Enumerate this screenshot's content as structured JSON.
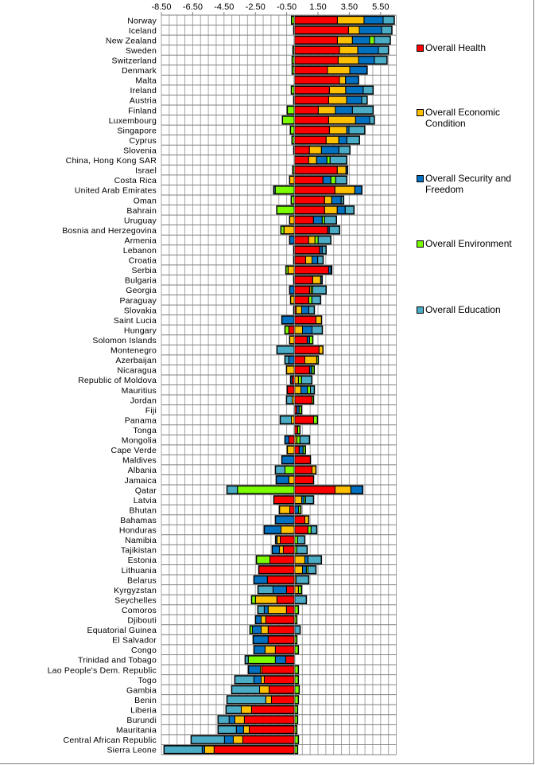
{
  "chart_data": {
    "type": "bar",
    "orientation": "horizontal",
    "stacked": true,
    "title": "",
    "xlabel": "",
    "ylabel": "",
    "xlim": [
      -8.5,
      6.5
    ],
    "x_ticks": [
      "-8.50",
      "-6.50",
      "-4.50",
      "-2.50",
      "-0.50",
      "1.50",
      "3.50",
      "5.50"
    ],
    "x_tick_values": [
      -8.5,
      -6.5,
      -4.5,
      -2.5,
      -0.5,
      1.5,
      3.5,
      5.5
    ],
    "grid": true,
    "legend_position": "right",
    "colors": {
      "Overall Health": "#ff0000",
      "Overall Economic Condition": "#ffc000",
      "Overall Security and Freedom": "#0070c0",
      "Overall Environment": "#7cfc00",
      "Overall Education": "#4bacc6"
    },
    "series_order": [
      "Overall Health",
      "Overall Economic Condition",
      "Overall Security and Freedom",
      "Overall Environment",
      "Overall Education"
    ],
    "categories": [
      "Norway",
      "Iceland",
      "New Zealand",
      "Sweden",
      "Switzerland",
      "Denmark",
      "Malta",
      "Ireland",
      "Austria",
      "Finland",
      "Luxembourg",
      "Singapore",
      "Cyprus",
      "Slovenia",
      "China, Hong Kong SAR",
      "Israel",
      "Costa Rica",
      "United Arab Emirates",
      "Oman",
      "Bahrain",
      "Uruguay",
      "Bosnia and Herzegovina",
      "Armenia",
      "Lebanon",
      "Croatia",
      "Serbia",
      "Bulgaria",
      "Georgia",
      "Paraguay",
      "Slovakia",
      "Saint Lucia",
      "Hungary",
      "Solomon Islands",
      "Montenegro",
      "Azerbaijan",
      "Nicaragua",
      "Republic of Moldova",
      "Mauritius",
      "Jordan",
      "Fiji",
      "Panama",
      "Tonga",
      "Mongolia",
      "Cape Verde",
      "Maldives",
      "Albania",
      "Jamaica",
      "Qatar",
      "Latvia",
      "Bhutan",
      "Bahamas",
      "Honduras",
      "Namibia",
      "Tajikistan",
      "Estonia",
      "Lithuania",
      "Belarus",
      "Kyrgyzstan",
      "Seychelles",
      "Comoros",
      "Djibouti",
      "Equatorial Guinea",
      "El Salvador",
      "Congo",
      "Trinidad and Tobago",
      "Lao People's Dem. Republic",
      "Togo",
      "Gambia",
      "Benin",
      "Liberia",
      "Burundi",
      "Mauritania",
      "Central African Republic",
      "Sierra Leone"
    ],
    "series": [
      {
        "name": "Overall Health",
        "values": [
          2.74,
          3.45,
          2.74,
          2.87,
          2.79,
          2.11,
          2.87,
          2.23,
          2.18,
          1.52,
          2.18,
          2.23,
          2.02,
          0.95,
          0.9,
          2.73,
          1.82,
          2.58,
          1.92,
          1.92,
          1.21,
          2.12,
          0.9,
          1.61,
          0.71,
          2.18,
          1.16,
          0.96,
          0.91,
          0.1,
          1.37,
          -0.36,
          0.81,
          1.57,
          0.66,
          0.96,
          -0.15,
          -0.46,
          1.12,
          0.15,
          1.22,
          0.2,
          -0.36,
          0.3,
          1.02,
          1.12,
          1.22,
          2.59,
          -1.32,
          -0.3,
          0.66,
          0.86,
          -0.91,
          -0.71,
          -1.57,
          -2.28,
          -1.73,
          -0.51,
          -1.12,
          -0.51,
          -1.83,
          -1.68,
          -1.68,
          -1.22,
          -0.56,
          -2.08,
          -1.93,
          -1.62,
          -1.47,
          -2.74,
          -3.2,
          -2.89,
          -3.3,
          -5.13
        ]
      },
      {
        "name": "Overall Economic Condition",
        "values": [
          1.7,
          0.69,
          0.96,
          1.17,
          1.3,
          1.42,
          0.39,
          1.04,
          1.15,
          1.09,
          1.72,
          1.1,
          0.81,
          0.77,
          0.51,
          0.56,
          -0.31,
          1.27,
          0.46,
          0.81,
          -0.31,
          -0.67,
          0.41,
          0.0,
          0.41,
          -0.41,
          0.51,
          0.1,
          -0.25,
          0.36,
          0.36,
          0.51,
          -0.31,
          0.25,
          0.76,
          -0.51,
          0.25,
          0.41,
          -0.15,
          0.0,
          -0.2,
          0.0,
          0.15,
          -0.46,
          0.0,
          0.25,
          -0.36,
          1.01,
          0.46,
          -0.66,
          0.25,
          -0.86,
          -0.2,
          -0.25,
          0.66,
          0.51,
          0.1,
          0.25,
          -1.37,
          -1.17,
          -0.3,
          -0.45,
          0.0,
          -0.66,
          0.0,
          -0.1,
          -0.2,
          -0.61,
          -0.36,
          -0.66,
          -0.61,
          -0.36,
          -0.61,
          -0.61
        ]
      },
      {
        "name": "Overall Security and Freedom",
        "values": [
          1.22,
          1.42,
          1.1,
          1.32,
          1.01,
          1.11,
          0.83,
          1.12,
          0.96,
          1.09,
          0.9,
          0.15,
          0.51,
          1.11,
          0.66,
          0.1,
          0.5,
          0.45,
          0.6,
          0.51,
          0.56,
          0.1,
          -0.31,
          0.16,
          0.36,
          0.15,
          0.1,
          -0.31,
          0.0,
          0.45,
          -0.81,
          0.61,
          0.15,
          0.0,
          -0.36,
          0.15,
          -0.1,
          0.41,
          0.0,
          0.15,
          0.0,
          0.0,
          -0.25,
          0.25,
          -0.81,
          0.0,
          -0.81,
          0.76,
          0.15,
          0.26,
          -1.22,
          -1.07,
          -0.1,
          -0.46,
          0.2,
          0.25,
          -0.86,
          -0.86,
          0.0,
          -0.25,
          -0.36,
          -0.56,
          -0.96,
          -0.71,
          -0.66,
          -0.76,
          -0.46,
          0.0,
          0.0,
          0.0,
          -0.36,
          -0.46,
          -0.56,
          -0.15
        ]
      },
      {
        "name": "Overall Environment",
        "values": [
          -0.19,
          -0.05,
          0.3,
          -0.1,
          -0.15,
          -0.15,
          0.0,
          -0.2,
          -0.05,
          -0.46,
          -0.77,
          -0.26,
          -0.16,
          -0.05,
          0.2,
          -0.11,
          0.31,
          -1.23,
          -0.21,
          -1.13,
          0.15,
          -0.2,
          0.2,
          -0.05,
          -0.05,
          -0.14,
          -0.05,
          0.1,
          0.2,
          -0.05,
          0.0,
          -0.25,
          0.21,
          0.0,
          0.1,
          0.15,
          0.2,
          0.2,
          0.1,
          0.15,
          0.25,
          0.15,
          0.2,
          0.15,
          0.0,
          -0.61,
          0.0,
          -3.64,
          0.1,
          0.15,
          0.0,
          0.2,
          0.2,
          0.15,
          -0.86,
          0.1,
          0.0,
          0.2,
          -0.25,
          0.25,
          0.15,
          -0.15,
          0.15,
          0.25,
          -1.73,
          0.25,
          0.25,
          0.3,
          0.25,
          0.2,
          0.2,
          0.15,
          0.25,
          0.2
        ]
      },
      {
        "name": "Overall Education",
        "values": [
          0.71,
          0.66,
          1.02,
          0.64,
          0.81,
          0.0,
          0.0,
          0.63,
          0.35,
          1.32,
          0.3,
          1.01,
          0.81,
          0.71,
          1.07,
          0.0,
          0.71,
          -0.1,
          0.16,
          0.56,
          0.76,
          0.66,
          0.81,
          0.25,
          0.35,
          0.05,
          0.0,
          0.86,
          0.56,
          0.36,
          0.0,
          0.66,
          0.0,
          -1.12,
          -0.25,
          0.0,
          0.66,
          0.25,
          -0.36,
          0.0,
          -0.71,
          0.0,
          0.61,
          0.0,
          0.0,
          -0.61,
          0.0,
          -0.67,
          0.51,
          0.0,
          0.0,
          0.36,
          0.46,
          0.66,
          0.86,
          0.51,
          0.81,
          -0.96,
          0.76,
          -0.41,
          0.0,
          0.36,
          0.0,
          0.0,
          -0.2,
          0.0,
          -1.22,
          -1.78,
          -2.48,
          -0.97,
          -0.71,
          -1.17,
          -2.13,
          -2.44
        ]
      }
    ]
  },
  "legend": {
    "items": [
      {
        "label": "Overall Health",
        "color": "#ff0000"
      },
      {
        "label": "Overall Economic Condition",
        "color": "#ffc000"
      },
      {
        "label": "Overall Security and Freedom",
        "color": "#0070c0"
      },
      {
        "label": "Overall Environment",
        "color": "#7cfc00"
      },
      {
        "label": "Overall Education",
        "color": "#4bacc6"
      }
    ]
  }
}
